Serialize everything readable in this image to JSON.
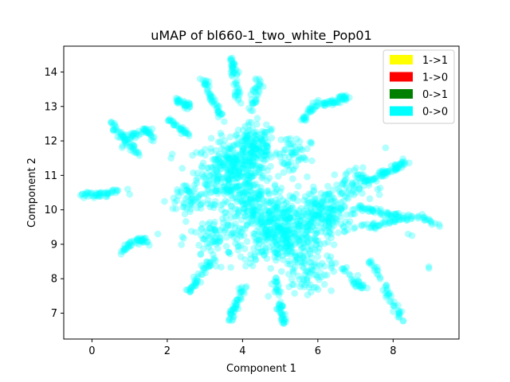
{
  "chart_data": {
    "type": "scatter",
    "title": "uMAP of bl660-1_two_white_Pop01",
    "xlabel": "Component 1",
    "ylabel": "Component 2",
    "xlim": [
      -0.75,
      9.75
    ],
    "ylim": [
      6.25,
      14.75
    ],
    "xticks": [
      0,
      2,
      4,
      6,
      8
    ],
    "yticks": [
      7,
      8,
      9,
      10,
      11,
      12,
      13,
      14
    ],
    "grid": false,
    "legend_position": "top-right",
    "legend": [
      {
        "label": "1->1",
        "color": "#ffff00"
      },
      {
        "label": "1->0",
        "color": "#ff0000"
      },
      {
        "label": "0->1",
        "color": "#008000"
      },
      {
        "label": "0->0",
        "color": "#00ffff"
      }
    ],
    "series": [
      {
        "name": "1->1",
        "color": "#ffff00",
        "points": []
      },
      {
        "name": "1->0",
        "color": "#ff0000",
        "points": []
      },
      {
        "name": "0->1",
        "color": "#008000",
        "points": []
      },
      {
        "name": "0->0",
        "color": "#00ffff",
        "point_alpha": 0.3,
        "clusters": [
          {
            "center": [
              3.7,
              11.1
            ],
            "spread": [
              0.45,
              0.45
            ],
            "n": 320
          },
          {
            "center": [
              4.3,
              11.8
            ],
            "spread": [
              0.3,
              0.35
            ],
            "n": 160
          },
          {
            "center": [
              5.0,
              9.3
            ],
            "spread": [
              0.55,
              0.45
            ],
            "n": 380
          },
          {
            "center": [
              6.2,
              9.9
            ],
            "spread": [
              0.45,
              0.35
            ],
            "n": 200
          },
          {
            "center": [
              4.4,
              10.1
            ],
            "spread": [
              0.4,
              0.4
            ],
            "n": 160
          },
          {
            "center": [
              3.3,
              9.2
            ],
            "spread": [
              0.35,
              0.35
            ],
            "n": 80
          },
          {
            "center": [
              2.6,
              10.3
            ],
            "spread": [
              0.3,
              0.3
            ],
            "n": 60
          },
          {
            "center": [
              5.7,
              8.2
            ],
            "spread": [
              0.35,
              0.3
            ],
            "n": 80
          },
          {
            "center": [
              5.3,
              11.6
            ],
            "spread": [
              0.25,
              0.3
            ],
            "n": 60
          },
          {
            "center": [
              6.8,
              10.7
            ],
            "spread": [
              0.3,
              0.25
            ],
            "n": 50
          }
        ],
        "strands": [
          [
            [
              -0.3,
              10.45
            ],
            [
              0.1,
              10.4
            ],
            [
              0.35,
              10.45
            ],
            [
              0.7,
              10.6
            ]
          ],
          [
            [
              0.5,
              12.55
            ],
            [
              0.75,
              12.2
            ],
            [
              1.0,
              11.9
            ],
            [
              1.25,
              11.55
            ]
          ],
          [
            [
              0.8,
              11.9
            ],
            [
              1.1,
              12.2
            ],
            [
              1.45,
              12.35
            ],
            [
              1.6,
              12.0
            ]
          ],
          [
            [
              0.8,
              8.8
            ],
            [
              1.0,
              9.0
            ],
            [
              1.3,
              9.15
            ],
            [
              1.5,
              9.05
            ]
          ],
          [
            [
              3.0,
              13.8
            ],
            [
              3.1,
              13.4
            ],
            [
              3.3,
              13.05
            ],
            [
              3.5,
              12.6
            ]
          ],
          [
            [
              2.25,
              13.2
            ],
            [
              2.45,
              13.1
            ],
            [
              2.6,
              13.0
            ]
          ],
          [
            [
              2.05,
              12.6
            ],
            [
              2.3,
              12.4
            ],
            [
              2.55,
              12.2
            ]
          ],
          [
            [
              2.5,
              7.5
            ],
            [
              2.75,
              7.9
            ],
            [
              3.0,
              8.3
            ],
            [
              3.25,
              8.6
            ]
          ],
          [
            [
              3.65,
              6.75
            ],
            [
              3.75,
              7.1
            ],
            [
              3.9,
              7.4
            ],
            [
              4.05,
              7.8
            ]
          ],
          [
            [
              3.7,
              14.4
            ],
            [
              3.75,
              14.1
            ],
            [
              3.8,
              13.6
            ],
            [
              3.9,
              13.1
            ]
          ],
          [
            [
              4.45,
              13.8
            ],
            [
              4.35,
              13.4
            ],
            [
              4.25,
              12.9
            ]
          ],
          [
            [
              5.1,
              6.7
            ],
            [
              5.05,
              7.0
            ],
            [
              4.95,
              7.5
            ],
            [
              4.85,
              8.0
            ]
          ],
          [
            [
              6.05,
              13.2
            ],
            [
              5.8,
              12.9
            ],
            [
              5.6,
              12.6
            ]
          ],
          [
            [
              6.8,
              13.3
            ],
            [
              6.6,
              13.2
            ],
            [
              6.35,
              13.1
            ],
            [
              6.15,
              13.05
            ]
          ],
          [
            [
              7.0,
              11.0
            ],
            [
              7.4,
              10.8
            ],
            [
              7.8,
              11.1
            ],
            [
              8.3,
              11.4
            ]
          ],
          [
            [
              7.0,
              10.1
            ],
            [
              7.4,
              10.0
            ],
            [
              7.8,
              9.9
            ],
            [
              8.2,
              9.8
            ]
          ],
          [
            [
              7.3,
              9.5
            ],
            [
              7.7,
              9.6
            ],
            [
              8.2,
              9.75
            ],
            [
              8.7,
              9.8
            ],
            [
              9.2,
              9.55
            ]
          ],
          [
            [
              7.4,
              8.5
            ],
            [
              7.7,
              7.9
            ],
            [
              8.0,
              7.3
            ],
            [
              8.3,
              6.7
            ]
          ],
          [
            [
              6.7,
              8.3
            ],
            [
              7.0,
              7.9
            ],
            [
              7.3,
              7.7
            ]
          ],
          [
            [
              8.3,
              11.4
            ],
            [
              8.1,
              11.2
            ],
            [
              7.6,
              11.0
            ]
          ]
        ],
        "isolated": [
          [
            3.9,
            14.0
          ],
          [
            3.85,
            13.95
          ],
          [
            8.95,
            8.35
          ],
          [
            8.95,
            8.3
          ],
          [
            8.4,
            9.3
          ],
          [
            8.5,
            9.25
          ],
          [
            7.8,
            11.8
          ],
          [
            5.1,
            6.7
          ],
          [
            5.15,
            6.75
          ],
          [
            8.0,
            7.05
          ],
          [
            2.1,
            11.5
          ],
          [
            1.6,
            12.35
          ],
          [
            0.95,
            10.6
          ],
          [
            1.0,
            10.45
          ],
          [
            1.75,
            9.3
          ]
        ]
      }
    ]
  }
}
